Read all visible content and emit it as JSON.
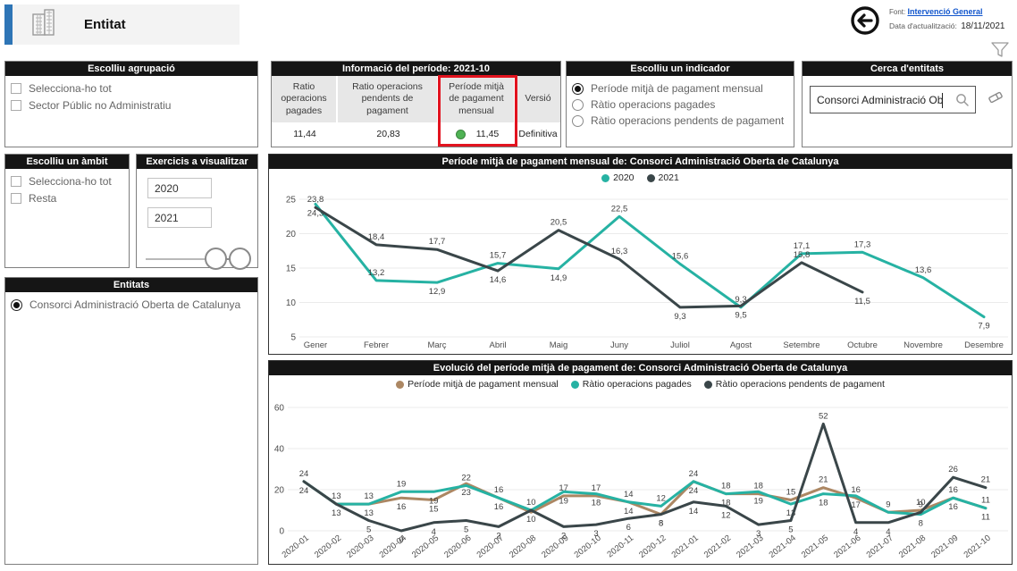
{
  "header": {
    "title": "Entitat"
  },
  "topbar": {
    "font_label": "Font:",
    "font_link": "Intervenció General",
    "updated_label": "Data d'actualització:",
    "updated_value": "18/11/2021"
  },
  "icons": {
    "back": "back-arrow-icon",
    "filter": "funnel-icon",
    "search": "magnifier-icon",
    "erase": "eraser-icon",
    "entity": "building-icon"
  },
  "panels": {
    "agrupacio": {
      "title": "Escolliu agrupació",
      "options": [
        {
          "label": "Selecciona-ho tot",
          "checked": false
        },
        {
          "label": "Sector Públic no Administratiu",
          "checked": false
        }
      ]
    },
    "ambit": {
      "title": "Escolliu un àmbit",
      "options": [
        {
          "label": "Selecciona-ho tot",
          "checked": false
        },
        {
          "label": "Resta",
          "checked": false
        }
      ]
    },
    "exercicis": {
      "title": "Exercicis a visualitzar",
      "year_from": "2020",
      "year_to": "2021"
    },
    "entitats": {
      "title": "Entitats",
      "options": [
        {
          "label": "Consorci Administració Oberta de Catalunya",
          "selected": true
        }
      ]
    },
    "periode": {
      "title": "Informació del període: 2021-10",
      "columns": [
        "Ratio operacions pagades",
        "Ratio operacions pendents de pagament",
        "Període mitjà de pagament mensual",
        "Versió"
      ],
      "values": [
        "11,44",
        "20,83",
        "11,45",
        "Definitiva"
      ],
      "highlight_column": 2,
      "highlight_color": "#e2131f",
      "status_dot_color": "#4fb254"
    },
    "indicador": {
      "title": "Escolliu un indicador",
      "options": [
        {
          "label": "Període mitjà de pagament mensual",
          "selected": true
        },
        {
          "label": "Ràtio operacions pagades",
          "selected": false
        },
        {
          "label": "Ràtio operacions pendents de pagament",
          "selected": false
        }
      ]
    },
    "cerca": {
      "title": "Cerca d'entitats",
      "query": "Consorci Administració Ob"
    }
  },
  "chart_data": [
    {
      "type": "line",
      "title": "Període mitjà de pagament mensual de: Consorci Administració Oberta de Catalunya",
      "categories": [
        "Gener",
        "Febrer",
        "Març",
        "Abril",
        "Maig",
        "Juny",
        "Juliol",
        "Agost",
        "Setembre",
        "Octubre",
        "Novembre",
        "Desembre"
      ],
      "ylim": [
        5,
        25
      ],
      "yticks": [
        5,
        10,
        15,
        20,
        25
      ],
      "grid": true,
      "legend_position": "top",
      "decimal_comma": true,
      "series": [
        {
          "name": "2020",
          "color": "#26b2a3",
          "values": [
            24.3,
            13.2,
            12.9,
            15.7,
            14.9,
            22.5,
            15.6,
            9.3,
            17.1,
            17.3,
            13.6,
            7.9
          ],
          "label_side": [
            "b",
            "a",
            "b",
            "a",
            "b",
            "a",
            "a",
            "a",
            "a",
            "a",
            "a",
            "b"
          ]
        },
        {
          "name": "2021",
          "color": "#3a4649",
          "values": [
            23.8,
            18.4,
            17.7,
            14.6,
            20.5,
            16.3,
            9.3,
            9.5,
            15.8,
            11.5,
            null,
            null
          ],
          "label_side": [
            "a",
            "a",
            "a",
            "b",
            "a",
            "a",
            "b",
            "b",
            "a",
            "b",
            "h",
            "h"
          ]
        }
      ]
    },
    {
      "type": "line",
      "title": "Evolució del període mitjà de pagament de: Consorci Administració Oberta de Catalunya",
      "categories": [
        "2020-01",
        "2020-02",
        "2020-03",
        "2020-04",
        "2020-05",
        "2020-06",
        "2020-07",
        "2020-08",
        "2020-09",
        "2020-10",
        "2020-11",
        "2020-12",
        "2021-01",
        "2021-02",
        "2021-03",
        "2021-04",
        "2021-05",
        "2021-06",
        "2021-07",
        "2021-08",
        "2021-09",
        "2021-10"
      ],
      "ylim": [
        0,
        60
      ],
      "yticks": [
        0,
        20,
        40,
        60
      ],
      "grid": true,
      "legend_position": "top",
      "decimal_comma": false,
      "x_label_rotation": -38,
      "series": [
        {
          "name": "Període mitjà de pagament mensual",
          "color": "#ac8763",
          "values": [
            24,
            13,
            13,
            16,
            15,
            23,
            16,
            9,
            17,
            17,
            14,
            8,
            24,
            18,
            18,
            15,
            21,
            16,
            9,
            10,
            16,
            11
          ],
          "label_side": [
            "b",
            "b",
            "b",
            "b",
            "b",
            "b",
            "b",
            "h",
            "a",
            "a",
            "b",
            "b",
            "b",
            "b",
            "a",
            "a",
            "a",
            "a",
            "h",
            "a",
            "b",
            "b"
          ]
        },
        {
          "name": "Ràtio operacions pagades",
          "color": "#26b2a3",
          "values": [
            24,
            13,
            13,
            19,
            19,
            22,
            16,
            10,
            19,
            18,
            14,
            12,
            24,
            18,
            19,
            13,
            18,
            17,
            9,
            8,
            16,
            11
          ],
          "label_side": [
            "a",
            "a",
            "a",
            "a",
            "b",
            "a",
            "a",
            "a",
            "b",
            "b",
            "a",
            "a",
            "a",
            "a",
            "b",
            "b",
            "b",
            "b",
            "a",
            "b",
            "a",
            "a"
          ]
        },
        {
          "name": "Ràtio operacions pendents de pagament",
          "color": "#3a4649",
          "values": [
            24,
            13,
            5,
            0,
            4,
            5,
            2,
            10,
            2,
            3,
            6,
            8,
            14,
            12,
            3,
            5,
            52,
            4,
            4,
            9,
            26,
            21
          ],
          "label_side": [
            "h",
            "h",
            "b",
            "b",
            "b",
            "b",
            "b",
            "b",
            "b",
            "b",
            "b",
            "b",
            "b",
            "b",
            "b",
            "b",
            "a",
            "b",
            "b",
            "a",
            "a",
            "a"
          ]
        }
      ]
    }
  ]
}
